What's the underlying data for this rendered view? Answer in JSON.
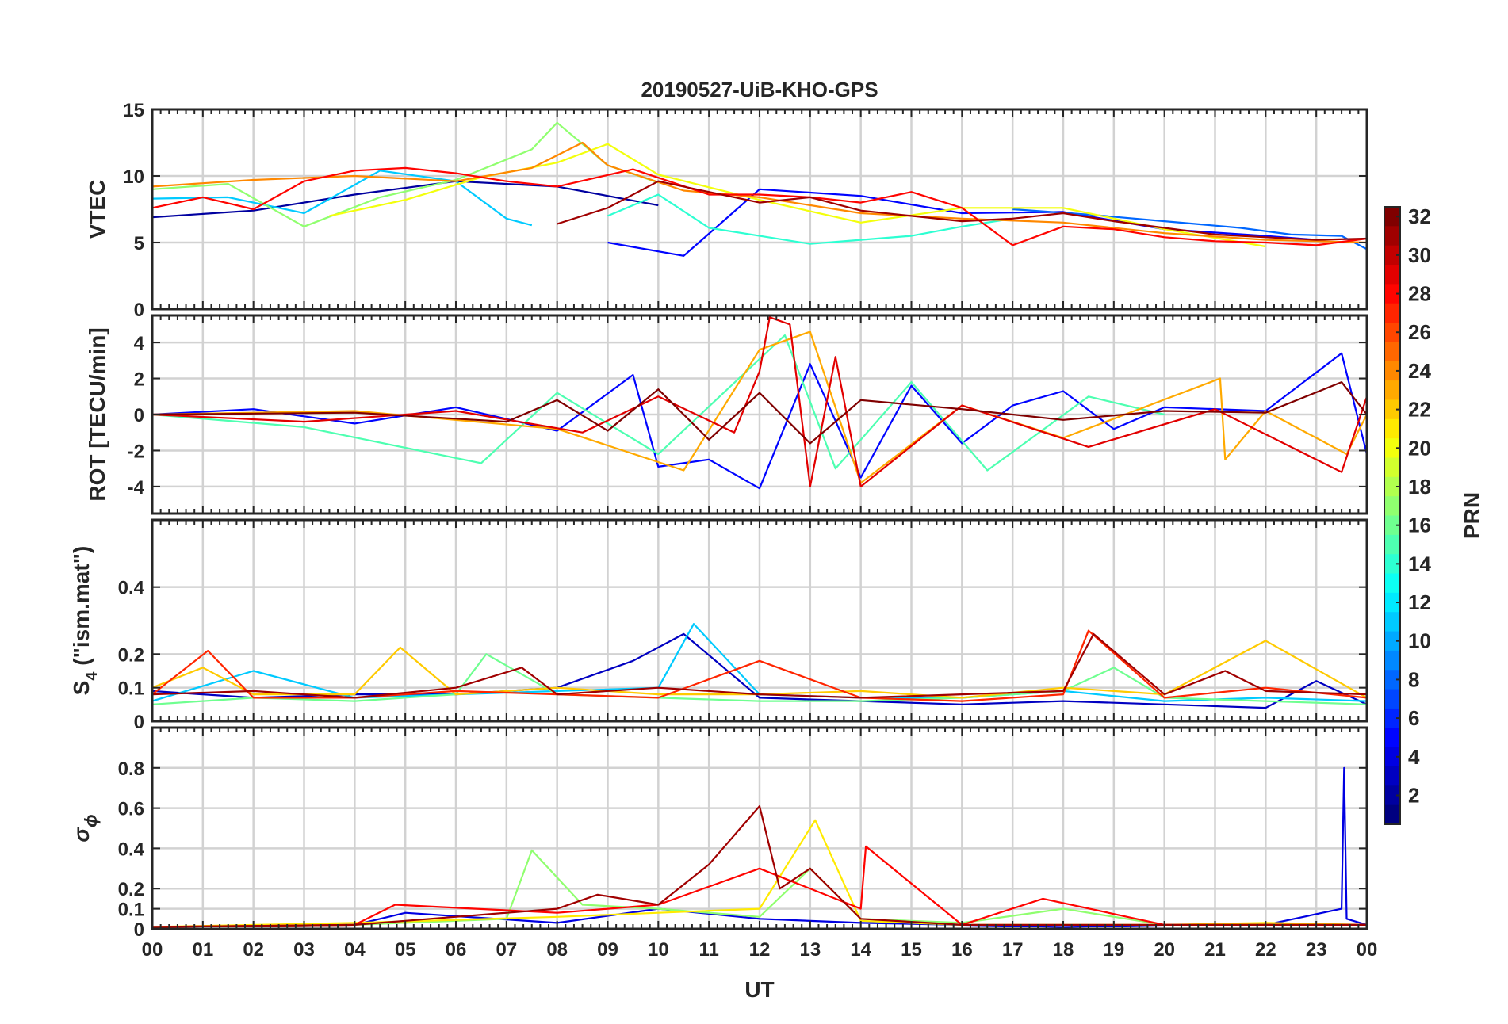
{
  "chart_data": {
    "type": "line",
    "title": "20190527-UiB-KHO-GPS",
    "xlabel": "UT",
    "x_tick_labels": [
      "00",
      "01",
      "02",
      "03",
      "04",
      "05",
      "06",
      "07",
      "08",
      "09",
      "10",
      "11",
      "12",
      "13",
      "14",
      "15",
      "16",
      "17",
      "18",
      "19",
      "20",
      "21",
      "22",
      "23",
      "00"
    ],
    "xlim_hours": [
      0,
      24
    ],
    "grid": true,
    "colormap": "jet",
    "colorbar": {
      "label": "PRN",
      "range": [
        1,
        32
      ],
      "tick_labels": [
        "2",
        "4",
        "6",
        "8",
        "10",
        "12",
        "14",
        "16",
        "18",
        "20",
        "22",
        "24",
        "26",
        "28",
        "30",
        "32"
      ],
      "placement": "right"
    },
    "panels": [
      {
        "id": "vtec",
        "ylabel": "VTEC",
        "ylim": [
          0,
          15
        ],
        "y_ticks": [
          0,
          5,
          10,
          15
        ],
        "y_tick_labels": [
          "0",
          "5",
          "10",
          "15"
        ],
        "series": [
          {
            "prn": 2,
            "x": [
              0.0,
              2.0,
              4.0,
              6.0,
              8.0,
              10.0
            ],
            "y": [
              6.9,
              7.4,
              8.6,
              9.6,
              9.2,
              7.8
            ]
          },
          {
            "prn": 5,
            "x": [
              9.0,
              10.5,
              12.0,
              14.0,
              16.0,
              18.0,
              20.0,
              22.0,
              23.0
            ],
            "y": [
              5.0,
              4.0,
              9.0,
              8.5,
              7.2,
              7.3,
              6.0,
              5.5,
              5.2
            ]
          },
          {
            "prn": 8,
            "x": [
              17.0,
              18.5,
              20.0,
              21.5,
              22.5,
              23.5,
              24.0
            ],
            "y": [
              7.5,
              7.1,
              6.6,
              6.1,
              5.6,
              5.5,
              4.5
            ]
          },
          {
            "prn": 11,
            "x": [
              0.0,
              1.5,
              3.0,
              4.5,
              6.0,
              7.0,
              7.5
            ],
            "y": [
              8.3,
              8.4,
              7.2,
              10.4,
              9.6,
              6.8,
              6.3
            ]
          },
          {
            "prn": 14,
            "x": [
              9.0,
              10.0,
              11.0,
              12.0,
              13.0,
              14.0,
              15.0,
              16.0,
              17.0
            ],
            "y": [
              7.0,
              8.6,
              6.1,
              5.5,
              4.9,
              5.2,
              5.5,
              6.2,
              6.8
            ]
          },
          {
            "prn": 17,
            "x": [
              0.0,
              1.5,
              3.0,
              4.5,
              6.0,
              7.5,
              8.0,
              9.0,
              10.0
            ],
            "y": [
              9.0,
              9.4,
              6.2,
              8.4,
              9.7,
              12.0,
              14.0,
              10.8,
              9.5
            ]
          },
          {
            "prn": 20,
            "x": [
              3.5,
              5.0,
              6.5,
              8.0,
              9.0,
              10.0,
              12.0,
              14.0,
              16.0,
              18.0,
              20.0,
              22.0
            ],
            "y": [
              7.0,
              8.2,
              9.9,
              11.0,
              12.4,
              10.1,
              8.2,
              6.5,
              7.6,
              7.6,
              6.0,
              4.7
            ]
          },
          {
            "prn": 24,
            "x": [
              0.0,
              2.0,
              4.0,
              6.0,
              7.5,
              8.5,
              9.0,
              10.5,
              12.0,
              14.0,
              16.0,
              18.0,
              20.0,
              22.0,
              24.0
            ],
            "y": [
              9.2,
              9.7,
              10.0,
              9.6,
              10.6,
              12.5,
              10.8,
              8.9,
              8.4,
              7.2,
              6.8,
              6.5,
              5.7,
              5.2,
              5.0
            ]
          },
          {
            "prn": 28,
            "x": [
              0.0,
              1.0,
              2.0,
              3.0,
              4.0,
              5.0,
              6.0,
              7.0,
              8.0,
              9.5,
              11.0,
              12.0,
              13.0,
              14.0,
              15.0,
              16.0,
              17.0,
              18.0,
              19.0,
              20.0,
              21.0,
              22.0,
              23.0,
              24.0
            ],
            "y": [
              7.6,
              8.4,
              7.5,
              9.6,
              10.4,
              10.6,
              10.2,
              9.6,
              9.2,
              10.5,
              8.6,
              8.6,
              8.4,
              8.0,
              8.8,
              7.6,
              4.8,
              6.2,
              6.0,
              5.4,
              5.1,
              5.0,
              4.8,
              5.3
            ]
          },
          {
            "prn": 31,
            "x": [
              8.0,
              9.0,
              10.0,
              11.0,
              12.0,
              13.0,
              14.0,
              15.0,
              16.0,
              17.0,
              18.0,
              19.0,
              20.0,
              21.0,
              22.0,
              23.0,
              24.0
            ],
            "y": [
              6.4,
              7.6,
              9.6,
              8.8,
              8.0,
              8.4,
              7.4,
              7.0,
              6.6,
              6.8,
              7.2,
              6.6,
              6.1,
              5.6,
              5.4,
              5.2,
              5.3
            ]
          }
        ]
      },
      {
        "id": "rot",
        "ylabel": "ROT [TECU/min]",
        "ylim": [
          -5.5,
          5.5
        ],
        "y_ticks": [
          -4,
          -2,
          0,
          2,
          4
        ],
        "y_tick_labels": [
          "-4",
          "-2",
          "0",
          "2",
          "4"
        ],
        "series": [
          {
            "prn": 5,
            "x": [
              0.0,
              2.0,
              4.0,
              6.0,
              8.0,
              9.5,
              10.0,
              11.0,
              12.0,
              13.0,
              14.0,
              15.0,
              16.0,
              17.0,
              18.0,
              19.0,
              20.0,
              22.0,
              23.5,
              24.0
            ],
            "y": [
              0.0,
              0.3,
              -0.5,
              0.4,
              -0.9,
              2.2,
              -2.9,
              -2.5,
              -4.1,
              2.8,
              -3.5,
              1.6,
              -1.6,
              0.5,
              1.3,
              -0.8,
              0.4,
              0.2,
              3.4,
              -2.2
            ]
          },
          {
            "prn": 15,
            "x": [
              0.0,
              3.0,
              6.5,
              8.0,
              10.0,
              12.5,
              13.5,
              15.0,
              16.5,
              18.5,
              20.0
            ],
            "y": [
              0.0,
              -0.7,
              -2.7,
              1.2,
              -2.2,
              4.4,
              -3.0,
              1.8,
              -3.1,
              1.0,
              0.0
            ]
          },
          {
            "prn": 23,
            "x": [
              0.0,
              4.0,
              8.0,
              10.5,
              12.0,
              13.0,
              14.0,
              16.0,
              18.0,
              21.1,
              21.2,
              22.0,
              23.6,
              24.0
            ],
            "y": [
              0.0,
              0.2,
              -0.8,
              -3.1,
              3.6,
              4.6,
              -3.8,
              0.5,
              -1.3,
              2.0,
              -2.5,
              0.2,
              -2.2,
              0.0
            ]
          },
          {
            "prn": 29,
            "x": [
              0.0,
              3.0,
              6.0,
              8.5,
              10.0,
              11.5,
              12.0,
              12.2,
              12.6,
              13.0,
              13.5,
              14.0,
              16.0,
              18.5,
              21.0,
              23.5,
              24.0
            ],
            "y": [
              0.0,
              -0.4,
              0.2,
              -1.0,
              1.0,
              -1.0,
              2.4,
              5.4,
              5.0,
              -4.0,
              3.2,
              -4.0,
              0.5,
              -1.8,
              0.3,
              -3.2,
              1.0
            ]
          },
          {
            "prn": 32,
            "x": [
              0.0,
              4.0,
              7.0,
              8.0,
              9.0,
              10.0,
              11.0,
              12.0,
              13.0,
              14.0,
              16.0,
              18.0,
              20.0,
              22.0,
              23.5,
              24.0
            ],
            "y": [
              0.0,
              0.1,
              -0.4,
              0.8,
              -0.9,
              1.4,
              -1.4,
              1.2,
              -1.6,
              0.8,
              0.3,
              -0.3,
              0.2,
              0.1,
              1.8,
              0.0
            ]
          }
        ]
      },
      {
        "id": "s4",
        "ylabel": "S4 (\"ism.mat\")",
        "ylim": [
          0,
          0.6
        ],
        "y_ticks": [
          0,
          0.1,
          0.2,
          0.4
        ],
        "y_tick_labels": [
          "0",
          "0.1",
          "0.2",
          "0.4"
        ],
        "series": [
          {
            "prn": 3,
            "x": [
              0.0,
              2.0,
              4.0,
              6.0,
              8.0,
              9.5,
              10.5,
              12.0,
              14.0,
              16.0,
              18.0,
              20.0,
              22.0,
              23.0,
              24.0
            ],
            "y": [
              0.09,
              0.07,
              0.08,
              0.08,
              0.1,
              0.18,
              0.26,
              0.07,
              0.06,
              0.05,
              0.06,
              0.05,
              0.04,
              0.12,
              0.05
            ]
          },
          {
            "prn": 11,
            "x": [
              0.0,
              2.0,
              4.0,
              6.0,
              8.0,
              10.0,
              10.7,
              12.0,
              14.0,
              16.0,
              18.0,
              20.0,
              22.0,
              24.0
            ],
            "y": [
              0.06,
              0.15,
              0.07,
              0.08,
              0.09,
              0.1,
              0.29,
              0.08,
              0.07,
              0.07,
              0.09,
              0.06,
              0.07,
              0.06
            ]
          },
          {
            "prn": 16,
            "x": [
              0.0,
              2.0,
              4.0,
              6.0,
              6.6,
              8.0,
              10.0,
              12.0,
              14.0,
              16.0,
              18.0,
              19.0,
              20.0,
              22.0,
              24.0
            ],
            "y": [
              0.05,
              0.07,
              0.06,
              0.08,
              0.2,
              0.08,
              0.07,
              0.06,
              0.06,
              0.07,
              0.09,
              0.16,
              0.07,
              0.06,
              0.05
            ]
          },
          {
            "prn": 22,
            "x": [
              0.0,
              1.0,
              2.0,
              4.0,
              4.9,
              6.0,
              8.0,
              10.0,
              12.0,
              14.0,
              16.0,
              18.0,
              20.0,
              22.0,
              24.0
            ],
            "y": [
              0.1,
              0.16,
              0.08,
              0.08,
              0.22,
              0.08,
              0.1,
              0.08,
              0.08,
              0.09,
              0.07,
              0.1,
              0.08,
              0.24,
              0.07
            ]
          },
          {
            "prn": 27,
            "x": [
              0.0,
              1.1,
              2.0,
              4.0,
              6.0,
              8.0,
              10.0,
              12.0,
              14.0,
              16.0,
              18.0,
              18.5,
              20.0,
              22.0,
              24.0
            ],
            "y": [
              0.08,
              0.21,
              0.07,
              0.07,
              0.09,
              0.08,
              0.07,
              0.18,
              0.07,
              0.06,
              0.08,
              0.27,
              0.07,
              0.1,
              0.07
            ]
          },
          {
            "prn": 31,
            "x": [
              0.0,
              2.0,
              4.0,
              6.0,
              7.3,
              8.0,
              10.0,
              12.0,
              14.0,
              16.0,
              18.0,
              18.6,
              20.0,
              21.2,
              22.0,
              24.0
            ],
            "y": [
              0.08,
              0.09,
              0.07,
              0.1,
              0.16,
              0.08,
              0.1,
              0.08,
              0.07,
              0.08,
              0.09,
              0.26,
              0.08,
              0.15,
              0.09,
              0.08
            ]
          }
        ]
      },
      {
        "id": "sigma_phi",
        "ylabel": "σ ϕ",
        "ylim": [
          0,
          1.0
        ],
        "y_ticks": [
          0,
          0.1,
          0.2,
          0.4,
          0.6,
          0.8
        ],
        "y_tick_labels": [
          "0",
          "0.1",
          "0.2",
          "0.4",
          "0.6",
          "0.8"
        ],
        "series": [
          {
            "prn": 4,
            "x": [
              0.0,
              4.0,
              5.0,
              8.0,
              10.0,
              12.0,
              14.0,
              16.0,
              18.0,
              20.0,
              22.0,
              23.5,
              23.55,
              23.6,
              24.0
            ],
            "y": [
              0.01,
              0.02,
              0.08,
              0.03,
              0.1,
              0.05,
              0.03,
              0.02,
              0.01,
              0.02,
              0.02,
              0.1,
              0.8,
              0.05,
              0.02
            ]
          },
          {
            "prn": 17,
            "x": [
              0.0,
              4.0,
              7.0,
              7.5,
              8.5,
              10.0,
              12.0,
              13.0,
              14.0,
              16.0,
              18.0,
              20.0,
              22.0,
              24.0
            ],
            "y": [
              0.01,
              0.02,
              0.05,
              0.39,
              0.12,
              0.1,
              0.06,
              0.3,
              0.05,
              0.03,
              0.1,
              0.02,
              0.02,
              0.02
            ]
          },
          {
            "prn": 21,
            "x": [
              0.0,
              4.0,
              8.0,
              10.0,
              12.0,
              13.1,
              14.0,
              16.0,
              18.0,
              20.0,
              22.0,
              24.0
            ],
            "y": [
              0.01,
              0.03,
              0.06,
              0.08,
              0.1,
              0.54,
              0.04,
              0.02,
              0.02,
              0.02,
              0.03,
              0.02
            ]
          },
          {
            "prn": 28,
            "x": [
              0.0,
              4.0,
              4.8,
              8.0,
              10.0,
              12.0,
              14.0,
              14.1,
              16.0,
              17.6,
              20.0,
              22.0,
              24.0
            ],
            "y": [
              0.01,
              0.02,
              0.12,
              0.08,
              0.12,
              0.3,
              0.1,
              0.41,
              0.02,
              0.15,
              0.02,
              0.02,
              0.02
            ]
          },
          {
            "prn": 31,
            "x": [
              0.0,
              4.0,
              8.0,
              8.8,
              10.0,
              11.0,
              12.0,
              12.4,
              13.0,
              14.0,
              16.0,
              18.0,
              20.0,
              24.0
            ],
            "y": [
              0.01,
              0.02,
              0.1,
              0.17,
              0.12,
              0.32,
              0.61,
              0.2,
              0.3,
              0.05,
              0.02,
              0.02,
              0.02,
              0.02
            ]
          }
        ]
      }
    ]
  }
}
